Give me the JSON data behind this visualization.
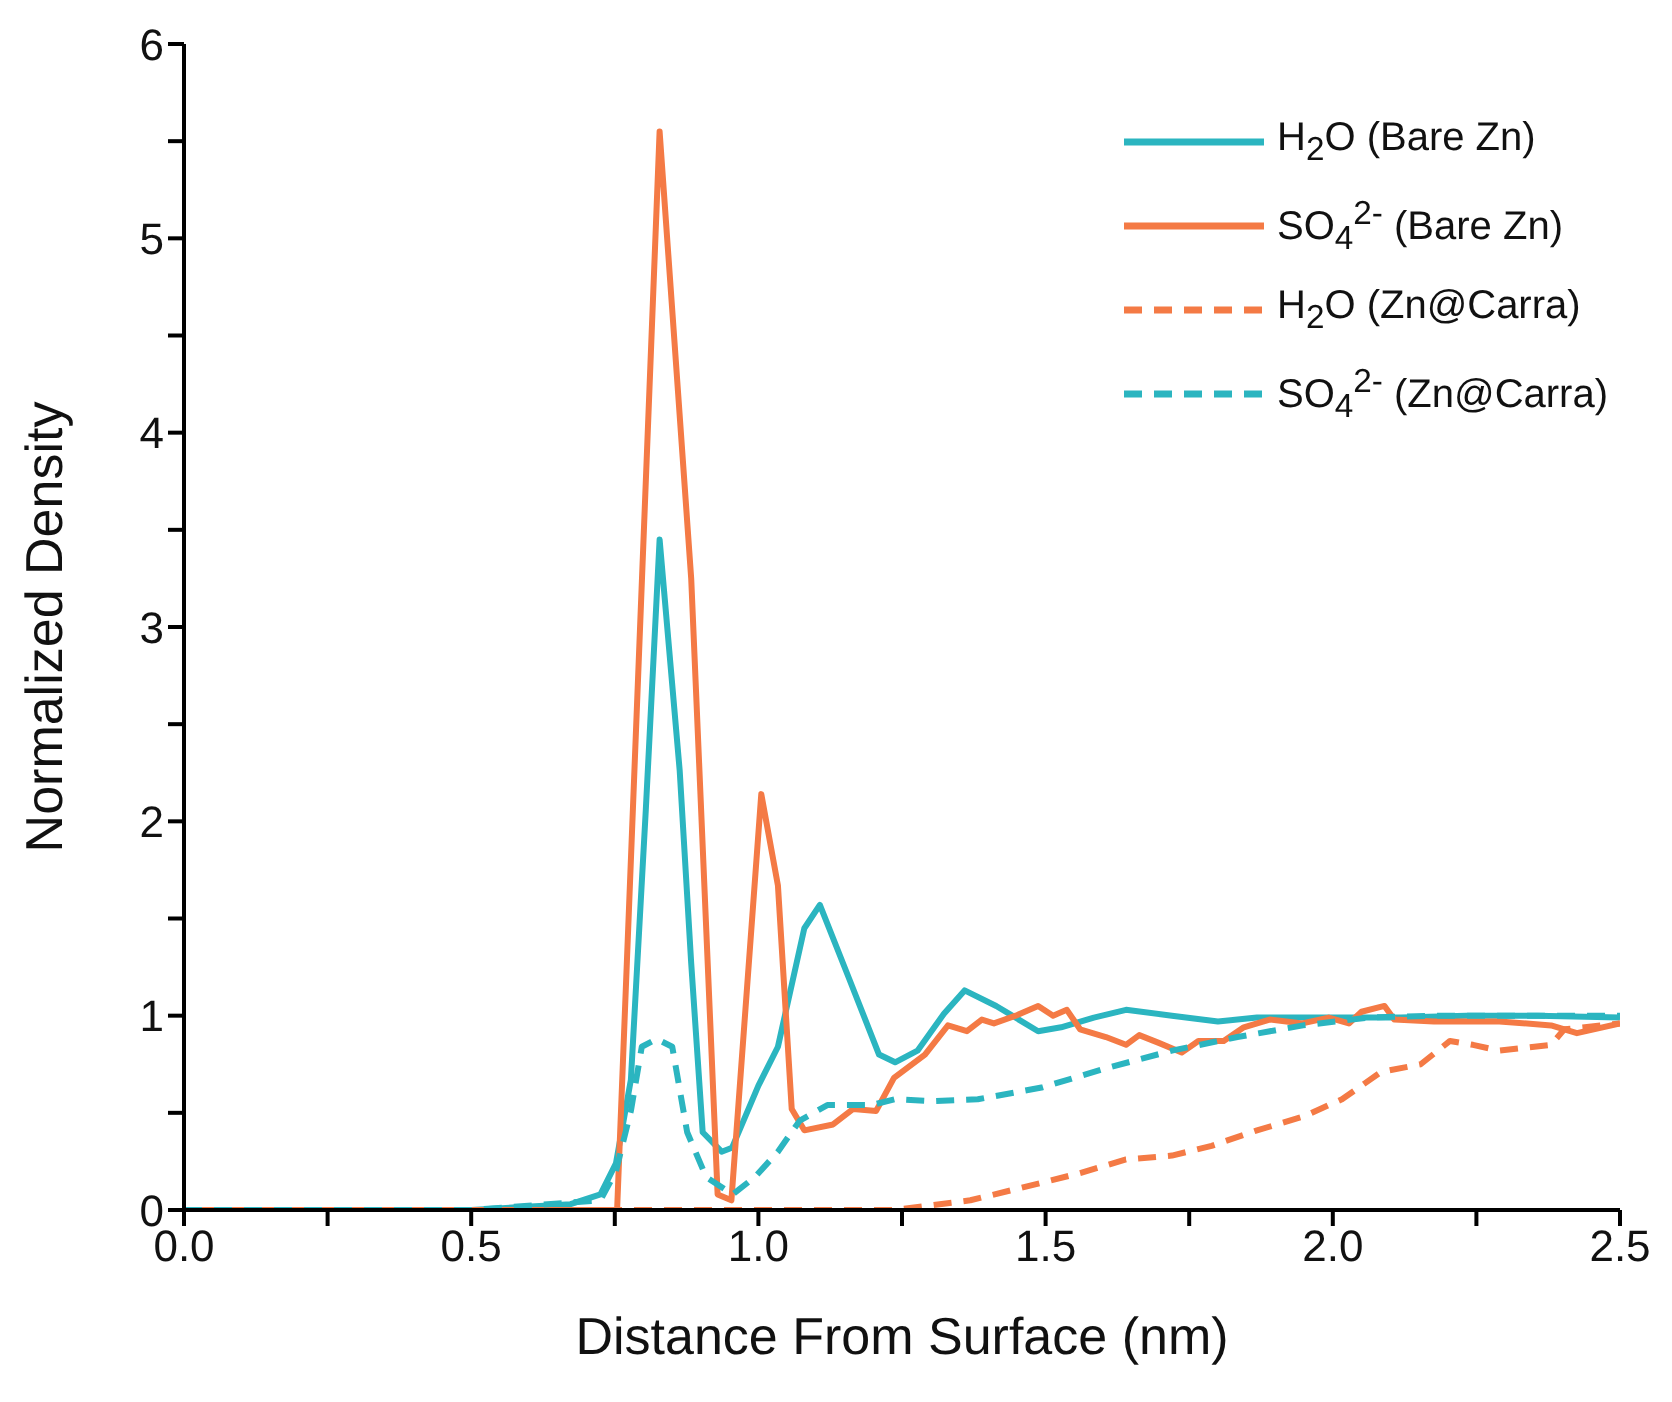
{
  "chart_data": {
    "type": "line",
    "xlabel": "Distance From Surface (nm)",
    "ylabel": "Normalized Density",
    "xlim": [
      0,
      2.5
    ],
    "xticks": [
      {
        "value": 0,
        "label": "0.0"
      },
      {
        "value": 0.25,
        "label": null
      },
      0.5,
      {
        "value": 0.75,
        "label": null
      },
      {
        "value": 1,
        "label": "1.0"
      },
      {
        "value": 1.25,
        "label": null
      },
      1.5,
      {
        "value": 1.75,
        "label": null
      },
      {
        "value": 2,
        "label": "2.0"
      },
      {
        "value": 2.25,
        "label": null
      },
      2.5
    ],
    "ylim": [
      0,
      6
    ],
    "yticks": [
      0,
      {
        "value": 0.5,
        "label": null
      },
      1,
      {
        "value": 1.5,
        "label": null
      },
      2,
      {
        "value": 2.5,
        "label": null
      },
      3,
      {
        "value": 3.5,
        "label": null
      },
      4,
      {
        "value": 4.5,
        "label": null
      },
      5,
      {
        "value": 5.5,
        "label": null
      },
      6
    ],
    "legend": "top right",
    "marker": "none",
    "series": [
      {
        "name": "H$_{2}$O (Bare Zn)",
        "color": "#2bb5c0",
        "line_style": "solid",
        "x": [
          0,
          0.5,
          0.673,
          0.725,
          0.752,
          0.778,
          0.804,
          0.828,
          0.863,
          0.883,
          0.903,
          0.936,
          0.954,
          1.0,
          1.034,
          1.08,
          1.107,
          1.158,
          1.21,
          1.238,
          1.277,
          1.323,
          1.359,
          1.414,
          1.487,
          1.527,
          1.584,
          1.64,
          1.72,
          1.8,
          1.868,
          2.005,
          2.118,
          2.232,
          2.357,
          2.5
        ],
        "values": [
          0,
          0,
          0.03,
          0.08,
          0.24,
          0.67,
          2.06,
          3.45,
          2.26,
          1.27,
          0.4,
          0.3,
          0.32,
          0.64,
          0.84,
          1.45,
          1.57,
          1.19,
          0.8,
          0.76,
          0.82,
          1.01,
          1.13,
          1.05,
          0.92,
          0.94,
          0.99,
          1.03,
          1.0,
          0.97,
          0.99,
          0.99,
          0.99,
          1.0,
          1.0,
          0.99
        ]
      },
      {
        "name": "SO$_{4}$$^{2-}$ (Bare Zn)",
        "color": "#f47a45",
        "line_style": "solid",
        "x": [
          0,
          0.5,
          0.754,
          0.828,
          0.883,
          0.929,
          0.953,
          1.005,
          1.034,
          1.058,
          1.08,
          1.13,
          1.165,
          1.205,
          1.236,
          1.29,
          1.33,
          1.363,
          1.389,
          1.41,
          1.448,
          1.487,
          1.513,
          1.537,
          1.56,
          1.605,
          1.64,
          1.663,
          1.697,
          1.737,
          1.766,
          1.81,
          1.845,
          1.89,
          1.947,
          1.993,
          2.028,
          2.05,
          2.09,
          2.107,
          2.176,
          2.29,
          2.38,
          2.425,
          2.5
        ],
        "values": [
          0,
          0,
          0,
          5.55,
          3.25,
          0.08,
          0.05,
          2.14,
          1.67,
          0.52,
          0.41,
          0.44,
          0.52,
          0.51,
          0.68,
          0.8,
          0.95,
          0.92,
          0.98,
          0.96,
          1.0,
          1.05,
          1.0,
          1.03,
          0.93,
          0.89,
          0.85,
          0.9,
          0.86,
          0.81,
          0.87,
          0.87,
          0.94,
          0.98,
          0.96,
          0.99,
          0.96,
          1.02,
          1.05,
          0.98,
          0.97,
          0.97,
          0.95,
          0.91,
          0.96
        ]
      },
      {
        "name": "H$_{2}$O (Zn@Carra)",
        "color": "#f47a45",
        "line_style": "dashed",
        "x": [
          0,
          0.5,
          1.0,
          1.236,
          1.369,
          1.493,
          1.56,
          1.64,
          1.72,
          1.789,
          1.868,
          1.948,
          2.016,
          2.084,
          2.153,
          2.204,
          2.244,
          2.29,
          2.38,
          2.403,
          2.5
        ],
        "values": [
          0,
          0,
          0,
          0,
          0.05,
          0.14,
          0.19,
          0.26,
          0.28,
          0.33,
          0.41,
          0.48,
          0.57,
          0.71,
          0.75,
          0.87,
          0.85,
          0.82,
          0.85,
          0.93,
          0.96
        ]
      },
      {
        "name": "SO$_{4}$$^{2-}$ (Zn@Carra)",
        "color": "#2bb5c0",
        "line_style": "dashed",
        "x": [
          0,
          0.5,
          0.725,
          0.752,
          0.778,
          0.797,
          0.823,
          0.85,
          0.876,
          0.909,
          0.955,
          0.994,
          1.034,
          1.072,
          1.12,
          1.197,
          1.238,
          1.3,
          1.382,
          1.493,
          1.606,
          1.72,
          1.834,
          1.948,
          2.062,
          2.176,
          2.357,
          2.5
        ],
        "values": [
          0,
          0,
          0.05,
          0.2,
          0.51,
          0.84,
          0.88,
          0.84,
          0.4,
          0.17,
          0.08,
          0.17,
          0.3,
          0.46,
          0.54,
          0.54,
          0.57,
          0.56,
          0.57,
          0.63,
          0.73,
          0.82,
          0.89,
          0.95,
          0.99,
          1.0,
          1.0,
          1.0
        ]
      }
    ]
  }
}
